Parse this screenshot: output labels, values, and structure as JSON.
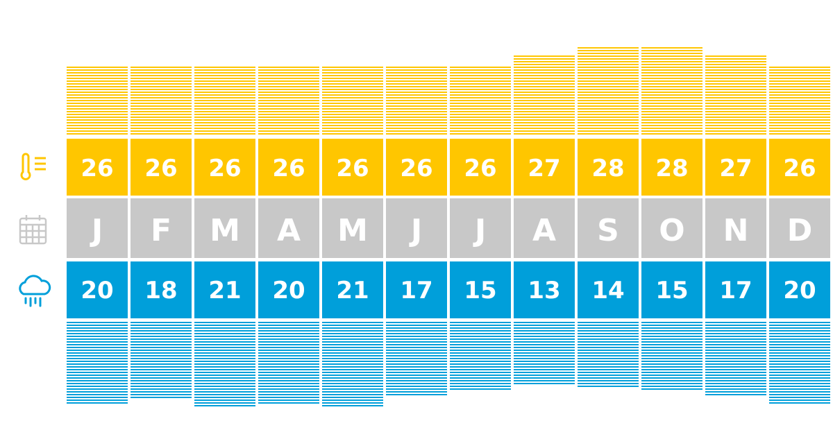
{
  "colors": {
    "temperature": "#FFC600",
    "months": "#C8C8C8",
    "rain": "#009FDA"
  },
  "icons": {
    "temperature": "thermometer-icon",
    "months": "calendar-icon",
    "rain": "rain-cloud-icon"
  },
  "chart_data": {
    "type": "table",
    "categories": [
      "J",
      "F",
      "M",
      "A",
      "M",
      "J",
      "J",
      "A",
      "S",
      "O",
      "N",
      "D"
    ],
    "series": [
      {
        "values": [
          26,
          26,
          26,
          26,
          26,
          26,
          26,
          27,
          28,
          28,
          27,
          26
        ]
      },
      {
        "values": [
          20,
          18,
          21,
          20,
          21,
          17,
          15,
          13,
          14,
          15,
          17,
          20
        ]
      }
    ]
  }
}
